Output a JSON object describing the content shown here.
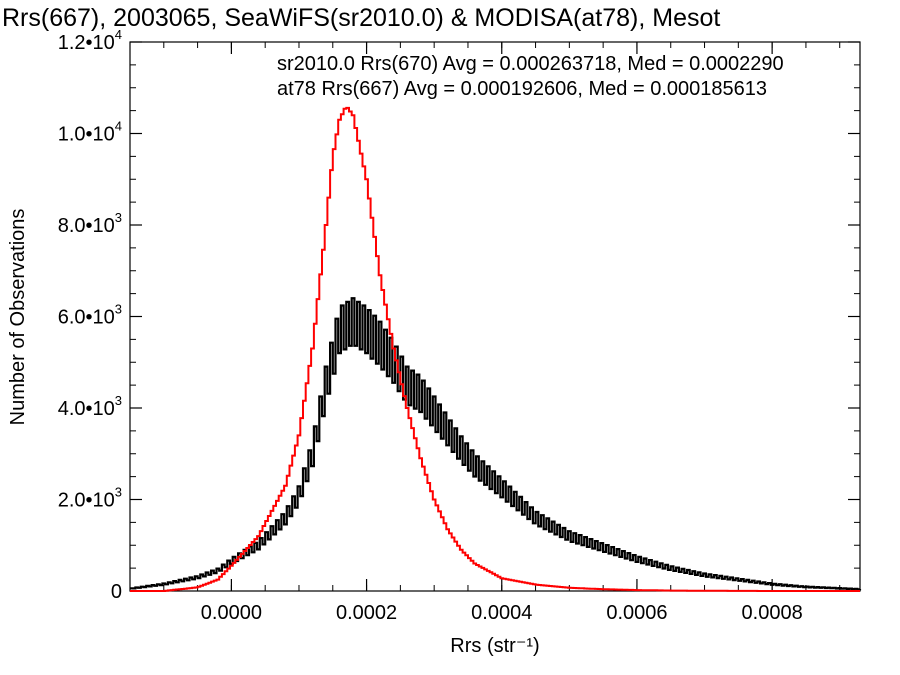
{
  "chart_data": {
    "type": "line",
    "title": "Rrs(667), 2003065, SeaWiFS(sr2010.0) & MODISA(at78), Mesot",
    "xlabel": "Rrs (str⁻¹)",
    "ylabel": "Number of Observations",
    "xlim": [
      -0.00015,
      0.00093
    ],
    "ylim": [
      0,
      12000
    ],
    "x_ticks": [
      {
        "value": 0.0,
        "label": "0.0000"
      },
      {
        "value": 0.0002,
        "label": "0.0002"
      },
      {
        "value": 0.0004,
        "label": "0.0004"
      },
      {
        "value": 0.0006,
        "label": "0.0006"
      },
      {
        "value": 0.0008,
        "label": "0.0008"
      }
    ],
    "y_ticks": [
      {
        "value": 0,
        "mant": "0",
        "exp": ""
      },
      {
        "value": 2000,
        "mant": "2.0•10",
        "exp": "3"
      },
      {
        "value": 4000,
        "mant": "4.0•10",
        "exp": "3"
      },
      {
        "value": 6000,
        "mant": "6.0•10",
        "exp": "3"
      },
      {
        "value": 8000,
        "mant": "8.0•10",
        "exp": "3"
      },
      {
        "value": 10000,
        "mant": "1.0•10",
        "exp": "4"
      },
      {
        "value": 12000,
        "mant": "1.2•10",
        "exp": "4"
      }
    ],
    "grid": false,
    "legend_position": "top-right",
    "series": [
      {
        "name": "sr2010.0 Rrs(670) Avg = 0.000263718, Med = 0.0002290",
        "color": "#000000",
        "style": "noisy-histogram",
        "x": [
          -0.00015,
          -0.0001,
          -5e-05,
          -2e-05,
          0.0,
          4e-05,
          8e-05,
          0.0001,
          0.00012,
          0.00014,
          0.00016,
          0.00018,
          0.0002,
          0.00022,
          0.00024,
          0.00026,
          0.00028,
          0.0003,
          0.00032,
          0.00034,
          0.00036,
          0.0004,
          0.00045,
          0.0005,
          0.00055,
          0.0006,
          0.00065,
          0.0007,
          0.00075,
          0.0008,
          0.00085,
          0.00093
        ],
        "values": [
          50,
          150,
          300,
          450,
          650,
          1000,
          1600,
          2100,
          3000,
          4500,
          5700,
          5900,
          5700,
          5400,
          5000,
          4500,
          4300,
          3900,
          3500,
          3100,
          2750,
          2250,
          1600,
          1200,
          950,
          700,
          500,
          350,
          250,
          150,
          90,
          40
        ]
      },
      {
        "name": "at78 Rrs(667) Avg = 0.000192606, Med = 0.000185613",
        "color": "#ff0000",
        "style": "histogram",
        "x": [
          -0.00015,
          -0.0001,
          -5e-05,
          -2e-05,
          0.0,
          4e-05,
          8e-05,
          0.0001,
          0.00012,
          0.00014,
          0.00015,
          0.00016,
          0.00017,
          0.00018,
          0.0002,
          0.00022,
          0.00024,
          0.00026,
          0.00028,
          0.0003,
          0.00032,
          0.00034,
          0.00036,
          0.0004,
          0.00045,
          0.0005,
          0.00055,
          0.0006,
          0.00065,
          0.0007,
          0.0008,
          0.00093
        ],
        "values": [
          0,
          0,
          80,
          250,
          550,
          1200,
          2300,
          3400,
          5300,
          8000,
          9500,
          10300,
          10600,
          10400,
          9000,
          6900,
          5300,
          4000,
          2900,
          2000,
          1350,
          900,
          600,
          280,
          140,
          70,
          40,
          20,
          10,
          5,
          0,
          0
        ]
      }
    ]
  }
}
